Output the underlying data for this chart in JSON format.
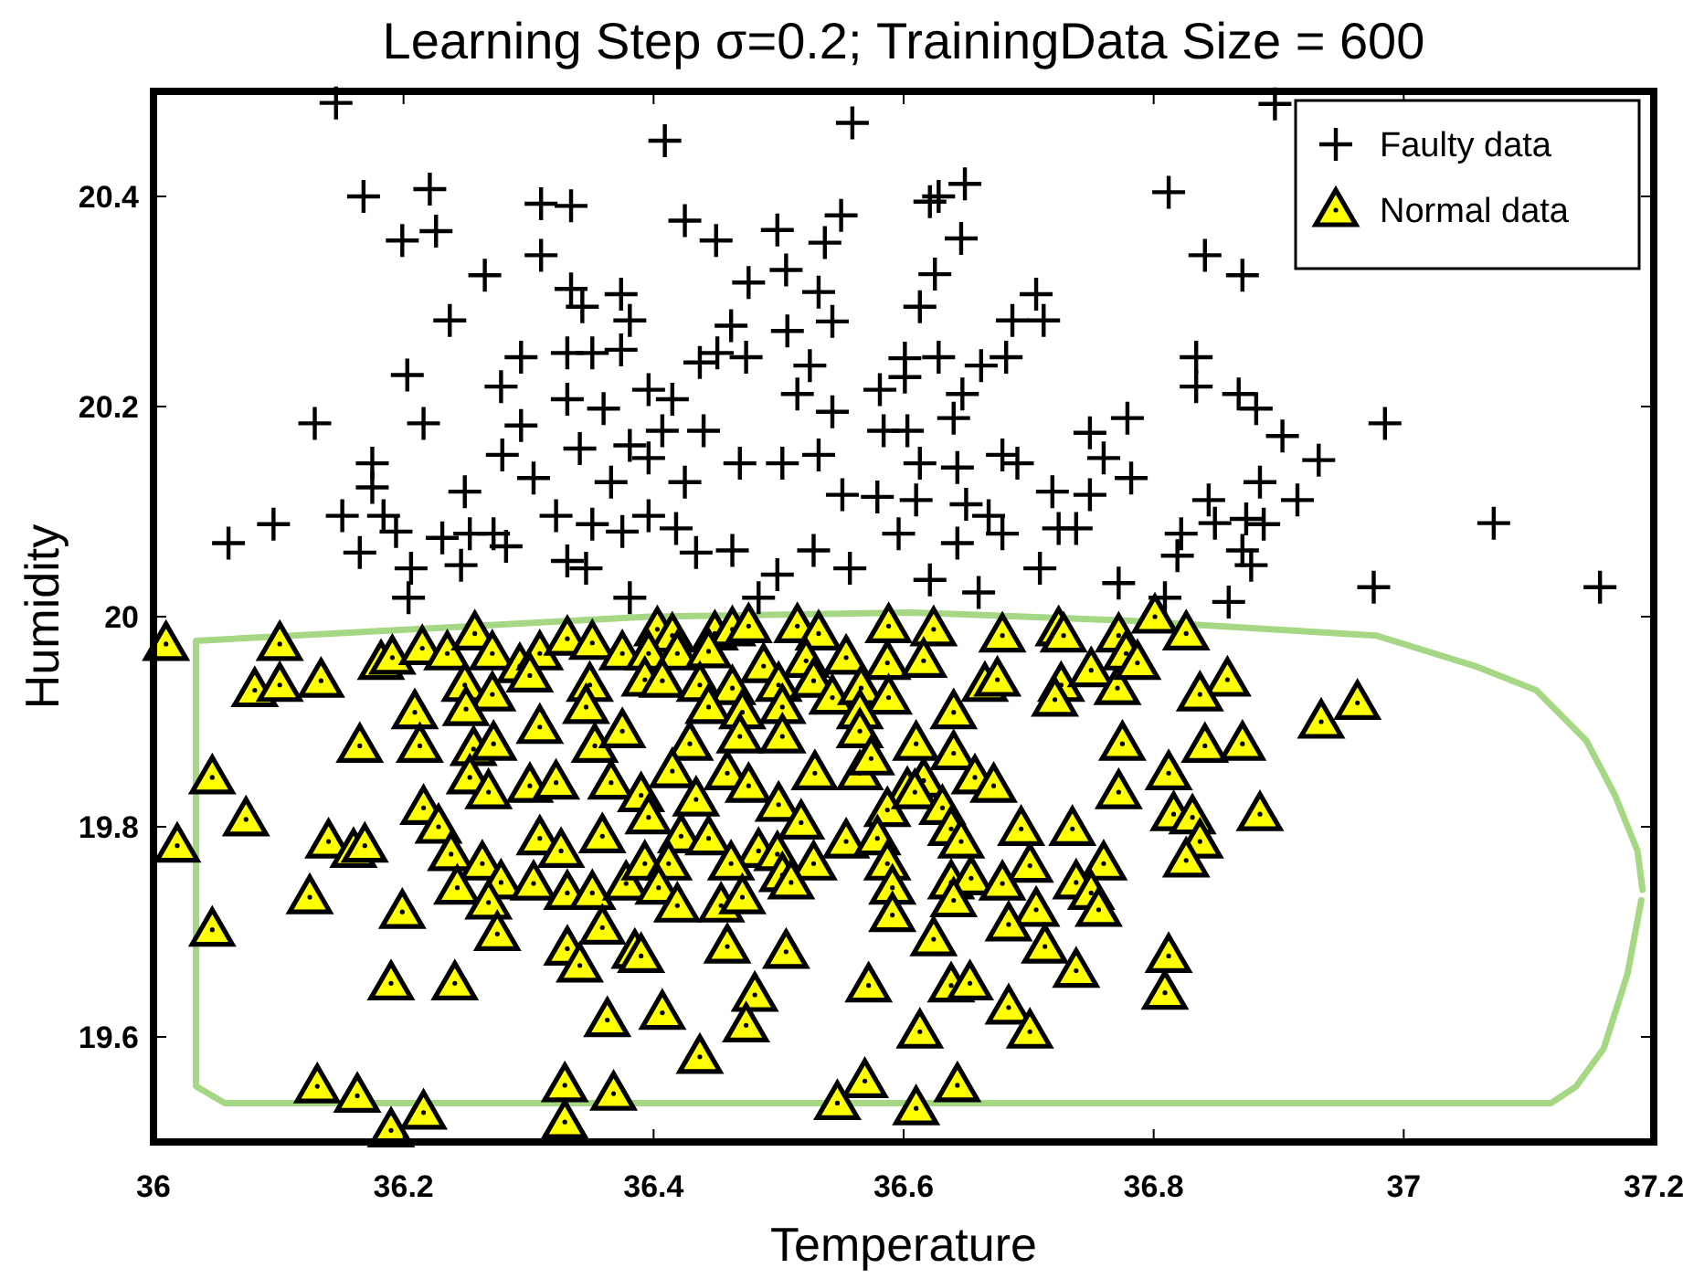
{
  "chart_data": {
    "type": "scatter",
    "title": "Learning Step σ=0.2; TrainingData Size = 600",
    "xlabel": "Temperature",
    "ylabel": "Humidity",
    "xlim": [
      36,
      37.2
    ],
    "ylim": [
      19.5,
      20.5
    ],
    "xticks": [
      36,
      36.2,
      36.4,
      36.6,
      36.8,
      37,
      37.2
    ],
    "yticks": [
      19.6,
      19.8,
      20,
      20.2,
      20.4
    ],
    "legend": "top right",
    "series": [
      {
        "type": "line",
        "color": "#a6d785",
        "marker": "none",
        "line_style": "solid",
        "x": [
          37.19,
          37.179,
          37.16,
          37.138,
          37.118,
          36.057,
          36.034,
          36.034,
          36.396,
          36.606,
          36.782,
          36.978,
          37.057,
          37.106,
          37.146,
          37.169,
          37.187,
          37.191
        ],
        "values": [
          19.73,
          19.66,
          19.589,
          19.553,
          19.537,
          19.537,
          19.553,
          19.977,
          20,
          20.004,
          19.996,
          19.982,
          19.953,
          19.93,
          19.882,
          19.83,
          19.777,
          19.74
        ]
      },
      {
        "name": "Faulty data",
        "color": "#000000",
        "marker": "cross",
        "x": [
          36.146,
          36.168,
          36.221,
          36.31,
          36.334,
          36.199,
          36.226,
          36.31,
          36.265,
          36.334,
          36.343,
          36.374,
          36.381,
          36.237,
          36.294,
          36.203,
          36.278,
          36.331,
          36.351,
          36.374,
          36.129,
          36.216,
          36.294,
          36.331,
          36.36,
          36.279,
          36.304,
          36.175,
          36.175,
          36.249,
          36.341,
          36.381,
          36.366,
          36.06,
          36.096,
          36.151,
          36.184,
          36.194,
          36.165,
          36.231,
          36.253,
          36.272,
          36.282,
          36.246,
          36.206,
          36.322,
          36.351,
          36.375,
          36.331,
          36.346,
          36.204,
          36.381,
          36.559,
          36.409,
          36.425,
          36.45,
          36.499,
          36.55,
          36.537,
          36.621,
          36.628,
          36.649,
          36.646,
          36.625,
          36.613,
          36.706,
          36.712,
          36.687,
          36.682,
          36.662,
          36.647,
          36.64,
          36.628,
          36.601,
          36.601,
          36.581,
          36.584,
          36.603,
          36.543,
          36.525,
          36.515,
          36.506,
          36.476,
          36.532,
          36.543,
          36.507,
          36.462,
          36.451,
          36.437,
          36.474,
          36.415,
          36.396,
          36.407,
          36.44,
          36.469,
          36.503,
          36.532,
          36.396,
          36.425,
          36.613,
          36.643,
          36.679,
          36.691,
          36.749,
          36.779,
          36.76,
          36.782,
          36.749,
          36.719,
          36.551,
          36.579,
          36.61,
          36.65,
          36.668,
          36.596,
          36.643,
          36.679,
          36.724,
          36.738,
          36.434,
          36.463,
          36.499,
          36.528,
          36.557,
          36.621,
          36.396,
          36.418,
          36.709,
          36.772,
          36.66,
          36.484,
          36.897,
          36.812,
          36.841,
          36.871,
          36.834,
          36.834,
          36.868,
          36.882,
          36.903,
          36.932,
          36.985,
          36.885,
          36.915,
          36.844,
          36.849,
          36.874,
          36.888,
          36.822,
          36.819,
          36.871,
          36.878,
          37.072,
          36.976,
          37.157,
          36.86,
          36.809
        ],
        "values": [
          20.489,
          20.4,
          20.407,
          20.393,
          20.391,
          20.358,
          20.367,
          20.344,
          20.325,
          20.312,
          20.295,
          20.307,
          20.282,
          20.282,
          20.247,
          20.23,
          20.219,
          20.251,
          20.251,
          20.254,
          20.184,
          20.184,
          20.182,
          20.207,
          20.198,
          20.154,
          20.132,
          20.146,
          20.123,
          20.119,
          20.16,
          20.163,
          20.128,
          20.07,
          20.088,
          20.096,
          20.096,
          20.081,
          20.061,
          20.075,
          20.079,
          20.079,
          20.067,
          20.049,
          20.046,
          20.096,
          20.088,
          20.081,
          20.053,
          20.046,
          20.018,
          20.018,
          20.47,
          20.453,
          20.377,
          20.358,
          20.368,
          20.382,
          20.356,
          20.395,
          20.4,
          20.412,
          20.36,
          20.326,
          20.295,
          20.307,
          20.282,
          20.282,
          20.247,
          20.239,
          20.212,
          20.189,
          20.247,
          20.246,
          20.228,
          20.216,
          20.177,
          20.177,
          20.195,
          20.239,
          20.212,
          20.33,
          20.318,
          20.309,
          20.281,
          20.272,
          20.277,
          20.251,
          20.242,
          20.247,
          20.207,
          20.216,
          20.177,
          20.177,
          20.146,
          20.146,
          20.154,
          20.151,
          20.128,
          20.146,
          20.142,
          20.154,
          20.146,
          20.175,
          20.189,
          20.151,
          20.132,
          20.116,
          20.119,
          20.116,
          20.114,
          20.111,
          20.107,
          20.096,
          20.079,
          20.07,
          20.079,
          20.084,
          20.084,
          20.061,
          20.063,
          20.04,
          20.063,
          20.046,
          20.035,
          20.096,
          20.084,
          20.046,
          20.032,
          20.023,
          20.018,
          20.488,
          20.404,
          20.344,
          20.325,
          20.247,
          20.219,
          20.212,
          20.198,
          20.172,
          20.149,
          20.184,
          20.128,
          20.111,
          20.111,
          20.089,
          20.093,
          20.088,
          20.079,
          20.058,
          20.063,
          20.049,
          20.089,
          20.028,
          20.028,
          20.014,
          20.018
        ]
      },
      {
        "name": "Normal data",
        "color": "#ffff00",
        "marker": "triangle",
        "x": [
          36.01,
          36.101,
          36.081,
          36.101,
          36.134,
          36.182,
          36.191,
          36.215,
          36.235,
          36.257,
          36.271,
          36.293,
          36.309,
          36.331,
          36.351,
          36.375,
          36.249,
          36.271,
          36.301,
          36.349,
          36.209,
          36.25,
          36.346,
          36.165,
          36.213,
          36.256,
          36.272,
          36.309,
          36.353,
          36.375,
          36.047,
          36.253,
          36.268,
          36.301,
          36.322,
          36.366,
          36.074,
          36.216,
          36.228,
          36.309,
          36.326,
          36.359,
          36.019,
          36.14,
          36.16,
          36.169,
          36.238,
          36.263,
          36.278,
          36.304,
          36.331,
          36.351,
          36.378,
          36.243,
          36.268,
          36.125,
          36.199,
          36.047,
          36.275,
          36.331,
          36.341,
          36.359,
          36.385,
          36.19,
          36.241,
          36.363,
          36.131,
          36.163,
          36.216,
          36.19,
          36.329,
          36.329,
          36.368,
          36.403,
          36.415,
          36.449,
          36.463,
          36.476,
          36.515,
          36.532,
          36.588,
          36.624,
          36.679,
          36.724,
          36.728,
          36.772,
          36.396,
          36.419,
          36.444,
          36.488,
          36.522,
          36.554,
          36.587,
          36.616,
          36.665,
          36.675,
          36.726,
          36.75,
          36.771,
          36.778,
          36.393,
          36.407,
          36.437,
          36.463,
          36.5,
          36.528,
          36.543,
          36.566,
          36.588,
          36.721,
          36.444,
          36.471,
          36.503,
          36.565,
          36.64,
          36.469,
          36.503,
          36.565,
          36.61,
          36.64,
          36.429,
          36.775,
          36.415,
          36.459,
          36.476,
          36.529,
          36.565,
          36.574,
          36.603,
          36.616,
          36.657,
          36.672,
          36.772,
          36.39,
          36.434,
          36.396,
          36.5,
          36.518,
          36.587,
          36.609,
          36.631,
          36.638,
          36.646,
          36.694,
          36.735,
          36.422,
          36.444,
          36.484,
          36.499,
          36.528,
          36.554,
          36.579,
          36.587,
          36.393,
          36.412,
          36.462,
          36.503,
          36.701,
          36.76,
          36.738,
          36.404,
          36.454,
          36.471,
          36.51,
          36.591,
          36.638,
          36.654,
          36.679,
          36.64,
          36.75,
          36.756,
          36.419,
          36.706,
          36.591,
          36.684,
          36.459,
          36.506,
          36.624,
          36.713,
          36.39,
          36.572,
          36.481,
          36.638,
          36.653,
          36.738,
          36.684,
          36.407,
          36.474,
          36.613,
          36.701,
          36.437,
          36.569,
          36.643,
          36.547,
          36.61,
          36.801,
          36.826,
          36.787,
          36.859,
          36.837,
          36.963,
          36.934,
          36.841,
          36.871,
          36.812,
          36.816,
          36.831,
          36.885,
          36.837,
          36.826,
          36.812,
          36.809
        ],
        "values": [
          19.974,
          19.974,
          19.93,
          19.935,
          19.939,
          19.956,
          19.961,
          19.97,
          19.965,
          19.984,
          19.965,
          19.953,
          19.965,
          19.979,
          19.975,
          19.965,
          19.935,
          19.926,
          19.944,
          19.935,
          19.909,
          19.912,
          19.914,
          19.877,
          19.877,
          19.874,
          19.879,
          19.895,
          19.877,
          19.891,
          19.847,
          19.847,
          19.833,
          19.839,
          19.842,
          19.842,
          19.807,
          19.818,
          19.8,
          19.789,
          19.777,
          19.791,
          19.782,
          19.786,
          19.777,
          19.782,
          19.774,
          19.765,
          19.747,
          19.746,
          19.737,
          19.737,
          19.746,
          19.742,
          19.728,
          19.733,
          19.719,
          19.702,
          19.698,
          19.684,
          19.668,
          19.704,
          19.681,
          19.651,
          19.651,
          19.616,
          19.553,
          19.544,
          19.528,
          19.511,
          19.554,
          19.519,
          19.546,
          19.988,
          19.982,
          19.984,
          19.988,
          19.991,
          19.991,
          19.984,
          19.991,
          19.988,
          19.982,
          19.988,
          19.982,
          19.982,
          19.965,
          19.965,
          19.967,
          19.953,
          19.958,
          19.961,
          19.956,
          19.958,
          19.935,
          19.94,
          19.935,
          19.949,
          19.932,
          19.965,
          19.94,
          19.939,
          19.935,
          19.932,
          19.935,
          19.939,
          19.923,
          19.932,
          19.923,
          19.921,
          19.914,
          19.909,
          19.914,
          19.909,
          19.909,
          19.886,
          19.886,
          19.891,
          19.879,
          19.87,
          19.879,
          19.879,
          19.853,
          19.851,
          19.839,
          19.851,
          19.851,
          19.865,
          19.835,
          19.844,
          19.847,
          19.839,
          19.833,
          19.83,
          19.826,
          19.809,
          19.821,
          19.804,
          19.816,
          19.833,
          19.818,
          19.798,
          19.786,
          19.798,
          19.798,
          19.791,
          19.789,
          19.777,
          19.774,
          19.765,
          19.786,
          19.789,
          19.765,
          19.765,
          19.765,
          19.765,
          19.754,
          19.763,
          19.765,
          19.747,
          19.742,
          19.725,
          19.733,
          19.747,
          19.742,
          19.747,
          19.751,
          19.746,
          19.73,
          19.737,
          19.721,
          19.725,
          19.721,
          19.716,
          19.707,
          19.686,
          19.681,
          19.693,
          19.686,
          19.677,
          19.649,
          19.64,
          19.649,
          19.651,
          19.663,
          19.628,
          19.623,
          19.611,
          19.605,
          19.605,
          19.581,
          19.558,
          19.554,
          19.537,
          19.532,
          20,
          19.984,
          19.956,
          19.94,
          19.926,
          19.918,
          19.9,
          19.877,
          19.879,
          19.851,
          19.812,
          19.809,
          19.812,
          19.786,
          19.768,
          19.677,
          19.642
        ]
      }
    ]
  }
}
